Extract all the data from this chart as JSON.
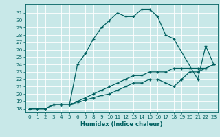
{
  "xlabel": "Humidex (Indice chaleur)",
  "bg_color": "#c8e8e8",
  "grid_color": "#ffffff",
  "line_color": "#006060",
  "xlim": [
    -0.5,
    23.5
  ],
  "ylim": [
    17.5,
    32.2
  ],
  "xticks": [
    0,
    1,
    2,
    3,
    4,
    5,
    6,
    7,
    8,
    9,
    10,
    11,
    12,
    13,
    14,
    15,
    16,
    17,
    18,
    19,
    20,
    21,
    22,
    23
  ],
  "yticks": [
    18,
    19,
    20,
    21,
    22,
    23,
    24,
    25,
    26,
    27,
    28,
    29,
    30,
    31
  ],
  "curve_main_x": [
    0,
    1,
    2,
    3,
    4,
    5,
    6,
    7,
    8,
    9,
    10,
    11,
    12,
    13,
    14,
    15,
    16,
    17,
    18,
    21,
    22,
    23
  ],
  "curve_main_y": [
    18,
    18,
    18,
    18.5,
    18.5,
    18.5,
    24,
    25.5,
    27.5,
    29,
    30,
    31,
    30.5,
    30.5,
    31.5,
    31.5,
    30.5,
    28,
    27.5,
    22,
    26.5,
    24
  ],
  "curve_mid_x": [
    0,
    1,
    2,
    3,
    4,
    5,
    6,
    7,
    8,
    9,
    10,
    11,
    12,
    13,
    14,
    15,
    16,
    17,
    18,
    19,
    20,
    21,
    22,
    23
  ],
  "curve_mid_y": [
    18,
    18,
    18,
    18.5,
    18.5,
    18.5,
    19,
    19.5,
    20,
    20.5,
    21,
    21.5,
    22,
    22.5,
    22.5,
    23,
    23,
    23,
    23.5,
    23.5,
    23.5,
    23.5,
    23.5,
    24
  ],
  "curve_low_x": [
    0,
    1,
    2,
    3,
    4,
    5,
    6,
    7,
    8,
    9,
    10,
    11,
    12,
    13,
    14,
    15,
    16,
    17,
    18,
    19,
    20,
    21,
    22,
    23
  ],
  "curve_low_y": [
    18,
    18,
    18,
    18.5,
    18.5,
    18.5,
    18.8,
    19.2,
    19.5,
    19.8,
    20,
    20.5,
    21,
    21.5,
    21.5,
    22,
    22,
    21.5,
    21,
    22,
    23,
    23,
    23.5,
    24
  ],
  "xlabel_fontsize": 6.0,
  "tick_fontsize": 5.2
}
